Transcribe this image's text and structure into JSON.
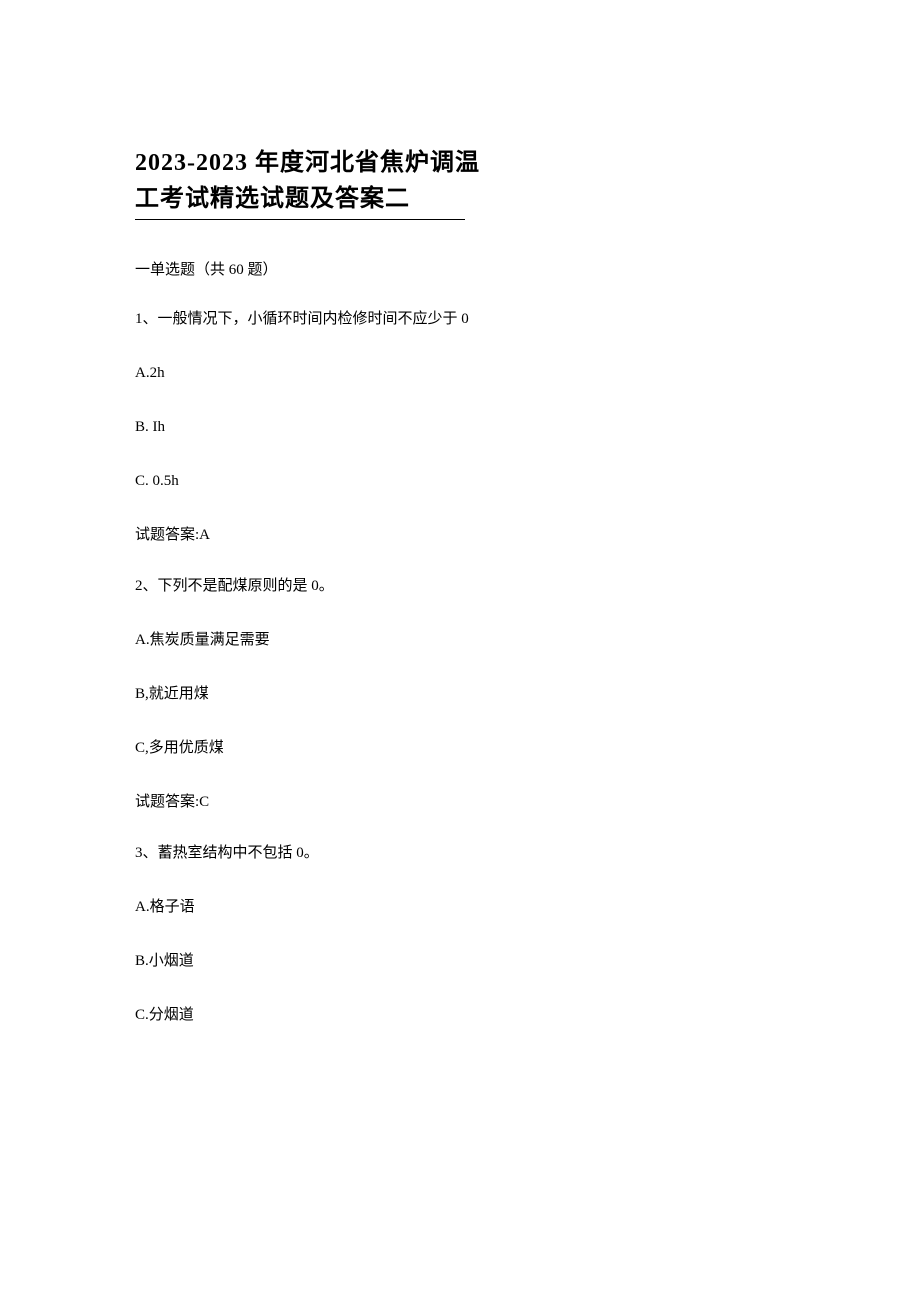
{
  "title": {
    "line1": "2023-2023 年度河北省焦炉调温",
    "line2": "工考试精选试题及答案二"
  },
  "section_header": "一单选题（共 60 题）",
  "questions": [
    {
      "text": "1、一般情况下，小循环时间内检修时间不应少于 0",
      "options": [
        "A.2h",
        "B.  Ih",
        "C.  0.5h"
      ],
      "answer": "试题答案:A"
    },
    {
      "text": "2、下列不是配煤原则的是 0。",
      "options": [
        "A.焦炭质量满足需要",
        "B,就近用煤",
        "C,多用优质煤"
      ],
      "answer": "试题答案:C"
    },
    {
      "text": "3、蓄热室结构中不包括 0。",
      "options": [
        "A.格子语",
        "B.小烟道",
        "C.分烟道"
      ],
      "answer": ""
    }
  ]
}
